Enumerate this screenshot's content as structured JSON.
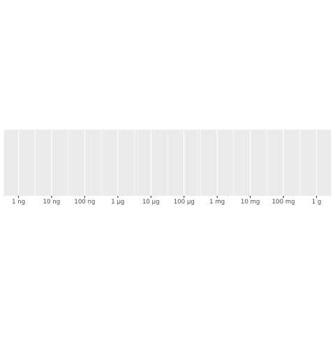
{
  "chart_data": {
    "type": "scatter",
    "title": "",
    "xlabel": "",
    "ylabel": "",
    "x_scale": "log10",
    "x_unit": "g",
    "xlim": [
      "1 ng",
      "1 g"
    ],
    "x_ticks": [
      {
        "label": "1 ng",
        "grams": 1e-09
      },
      {
        "label": "10 ng",
        "grams": 1e-08
      },
      {
        "label": "100 ng",
        "grams": 1e-07
      },
      {
        "label": "1 µg",
        "grams": 1e-06
      },
      {
        "label": "10 µg",
        "grams": 1e-05
      },
      {
        "label": "100 µg",
        "grams": 0.0001
      },
      {
        "label": "1 mg",
        "grams": 0.001
      },
      {
        "label": "10 mg",
        "grams": 0.01
      },
      {
        "label": "100 mg",
        "grams": 0.1
      },
      {
        "label": "1 g",
        "grams": 1
      }
    ],
    "y_axis_shown": false,
    "series": [],
    "grid": true,
    "legend": "none",
    "panel_color": "#ebebeb",
    "grid_color": "#ffffff",
    "tick_text_color": "#4d4d4d",
    "tick_color": "#333333"
  }
}
